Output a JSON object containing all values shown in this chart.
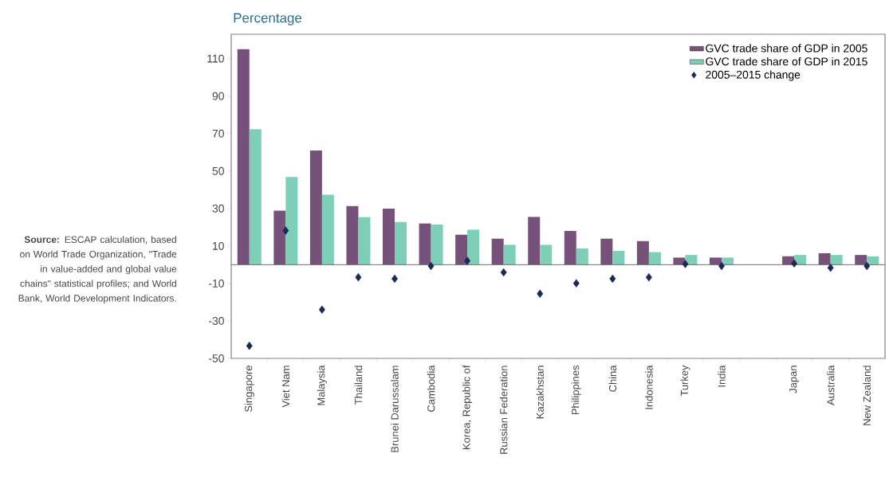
{
  "chart_data": {
    "type": "bar",
    "ylabel": "Percentage",
    "categories": [
      "Singapore",
      "Viet Nam",
      "Malaysia",
      "Thailand",
      "Brunei Darussalam",
      "Cambodia",
      "Korea, Republic of",
      "Russian Federation",
      "Kazakhstan",
      "Philippines",
      "China",
      "Indonesia",
      "Turkey",
      "India",
      null,
      "Japan",
      "Australia",
      "New Zealand"
    ],
    "series": [
      {
        "name": "GVC trade share of GDP in 2005",
        "color": "#765179",
        "values": [
          115,
          28.8,
          60.9,
          31.3,
          29.9,
          22,
          16,
          13.9,
          25.5,
          18,
          13.9,
          12.6,
          3.8,
          3.8,
          null,
          4.5,
          6.1,
          5.2
        ]
      },
      {
        "name": "GVC trade share of GDP in 2015",
        "color": "#7ecfb8",
        "values": [
          72.3,
          46.8,
          37.3,
          25.4,
          22.8,
          21.4,
          18.7,
          10.6,
          10.6,
          8.7,
          7.4,
          6.7,
          5.2,
          3.8,
          null,
          5.2,
          5.2,
          4.4
        ]
      },
      {
        "name": "2005–2015 change",
        "type": "scatter",
        "marker": "diamond",
        "color": "#1b2a55",
        "values": [
          -43.3,
          18.2,
          -24,
          -6.7,
          -7.5,
          -0.7,
          2.1,
          -4.1,
          -15.5,
          -9.9,
          -7.5,
          -6.7,
          0.4,
          -0.7,
          null,
          0.7,
          -1.6,
          -0.7
        ]
      }
    ],
    "ylim": [
      -50,
      123
    ],
    "yticks": [
      -50,
      -30,
      -10,
      10,
      30,
      50,
      70,
      90,
      110
    ],
    "legend": "top right",
    "annotations": [
      "**Source:** ESCAP calculation, based on World Trade Organization, \"Trade in value-added and global value chains\" statistical profiles; and World Bank, World Development Indicators."
    ]
  }
}
